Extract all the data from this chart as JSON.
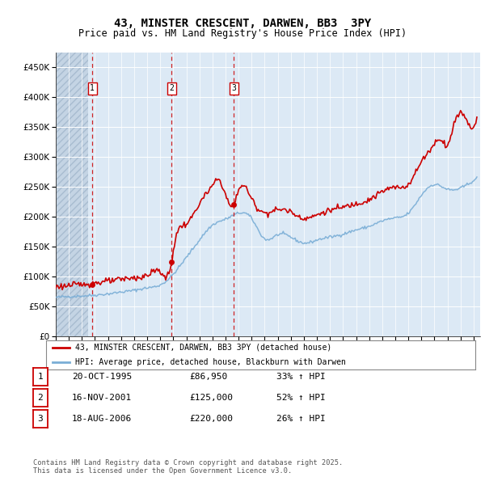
{
  "title_line1": "43, MINSTER CRESCENT, DARWEN, BB3  3PY",
  "title_line2": "Price paid vs. HM Land Registry's House Price Index (HPI)",
  "legend_property": "43, MINSTER CRESCENT, DARWEN, BB3 3PY (detached house)",
  "legend_hpi": "HPI: Average price, detached house, Blackburn with Darwen",
  "sales": [
    {
      "num": 1,
      "date_str": "20-OCT-1995",
      "year": 1995.8,
      "price": 86950,
      "pct": "33% ↑ HPI"
    },
    {
      "num": 2,
      "date_str": "16-NOV-2001",
      "year": 2001.88,
      "price": 125000,
      "pct": "52% ↑ HPI"
    },
    {
      "num": 3,
      "date_str": "18-AUG-2006",
      "year": 2006.63,
      "price": 220000,
      "pct": "26% ↑ HPI"
    }
  ],
  "ylim": [
    0,
    475000
  ],
  "yticks": [
    0,
    50000,
    100000,
    150000,
    200000,
    250000,
    300000,
    350000,
    400000,
    450000
  ],
  "property_color": "#cc0000",
  "hpi_color": "#7aaed6",
  "background_color": "#dce9f5",
  "plot_bg_color": "#dce9f5",
  "grid_color": "#ffffff",
  "footer_text": "Contains HM Land Registry data © Crown copyright and database right 2025.\nThis data is licensed under the Open Government Licence v3.0.",
  "xlim_start": 1993.0,
  "xlim_end": 2025.5,
  "hpi_key_t": [
    1993,
    1994,
    1995,
    1996,
    1997,
    1998,
    1999,
    2000,
    2001,
    2002,
    2003,
    2004,
    2005,
    2006,
    2007,
    2008,
    2009,
    2010,
    2011,
    2012,
    2013,
    2014,
    2015,
    2016,
    2017,
    2018,
    2019,
    2020,
    2021,
    2022,
    2023,
    2024,
    2025.3
  ],
  "hpi_key_v": [
    65000,
    66500,
    67500,
    69000,
    71000,
    74000,
    77000,
    81000,
    86000,
    104000,
    132000,
    161000,
    186000,
    196000,
    206000,
    197000,
    163000,
    170000,
    166000,
    156000,
    161000,
    166000,
    171000,
    178000,
    184000,
    193000,
    198000,
    206000,
    236000,
    254000,
    246000,
    248000,
    265000
  ],
  "prop_key_t": [
    1993,
    1994,
    1995,
    1996,
    1997,
    1998,
    1999,
    2000,
    2001,
    2001.88,
    2002,
    2003,
    2004,
    2005,
    2005.5,
    2006.63,
    2007,
    2008,
    2009,
    2010,
    2011,
    2012,
    2013,
    2014,
    2015,
    2016,
    2017,
    2018,
    2019,
    2020,
    2021,
    2022,
    2022.5,
    2023,
    2023.5,
    2024,
    2024.5,
    2025.3
  ],
  "prop_key_v": [
    83000,
    85000,
    87000,
    89500,
    92000,
    95000,
    98000,
    102000,
    108000,
    125000,
    143000,
    188000,
    222000,
    252000,
    262000,
    220000,
    245000,
    230000,
    207000,
    212000,
    208000,
    198000,
    203000,
    211000,
    216000,
    222000,
    229000,
    242000,
    249000,
    255000,
    292000,
    322000,
    330000,
    320000,
    355000,
    375000,
    360000,
    370000
  ]
}
